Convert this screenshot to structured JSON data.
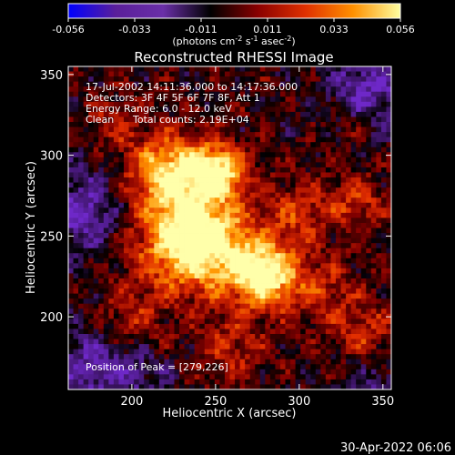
{
  "chart_data": {
    "type": "heatmap",
    "title": "Reconstructed RHESSI Image",
    "xlabel": "Heliocentric X (arcsec)",
    "ylabel": "Heliocentric Y (arcsec)",
    "xlim": [
      162,
      355
    ],
    "ylim": [
      155,
      355
    ],
    "x_ticks": [
      200,
      250,
      300,
      350
    ],
    "y_ticks": [
      200,
      250,
      300,
      350
    ],
    "colorbar": {
      "range": [
        -0.056,
        0.056
      ],
      "ticks": [
        "-0.056",
        "-0.033",
        "-0.011",
        "0.011",
        "0.033",
        "0.056"
      ],
      "unit_main": "(photons cm",
      "unit_sup1": "-2",
      "unit_mid": " s",
      "unit_sup2": "-1",
      "unit_end": " asec",
      "unit_sup3": "-2",
      "unit_close": ")",
      "colors": [
        "#0000ff",
        "#5a1f9a",
        "#6a2fa8",
        "#000000",
        "#8a0000",
        "#e03000",
        "#ff9000",
        "#ffffa0"
      ]
    },
    "annotations": [
      "17-Jul-2002 14:11:36.000 to 14:17:36.000",
      "Detectors: 3F 4F 5F 6F 7F 8F, Att 1",
      "Energy Range: 6.0 - 12.0 keV"
    ],
    "clean_label": "Clean",
    "total_counts": "Total counts: 2.19E+04",
    "peak_label": "Position of Peak = [279,226]",
    "peak": [
      279,
      226
    ],
    "sources": [
      {
        "x": 222,
        "y": 290,
        "amp": 0.045,
        "sigma": 16
      },
      {
        "x": 251,
        "y": 290,
        "amp": 0.05,
        "sigma": 12
      },
      {
        "x": 279,
        "y": 226,
        "amp": 0.056,
        "sigma": 14
      },
      {
        "x": 245,
        "y": 245,
        "amp": 0.04,
        "sigma": 20
      },
      {
        "x": 228,
        "y": 250,
        "amp": 0.032,
        "sigma": 22
      },
      {
        "x": 300,
        "y": 265,
        "amp": 0.02,
        "sigma": 14
      },
      {
        "x": 315,
        "y": 215,
        "amp": 0.018,
        "sigma": 16
      },
      {
        "x": 335,
        "y": 270,
        "amp": 0.02,
        "sigma": 12
      },
      {
        "x": 200,
        "y": 200,
        "amp": 0.016,
        "sigma": 14
      },
      {
        "x": 260,
        "y": 180,
        "amp": 0.018,
        "sigma": 14
      },
      {
        "x": 340,
        "y": 190,
        "amp": 0.018,
        "sigma": 12
      },
      {
        "x": 190,
        "y": 320,
        "amp": 0.014,
        "sigma": 12
      },
      {
        "x": 330,
        "y": 320,
        "amp": 0.01,
        "sigma": 10
      }
    ],
    "negative_regions": [
      {
        "x": 170,
        "y": 265,
        "amp": -0.028,
        "sigma": 18
      },
      {
        "x": 175,
        "y": 170,
        "amp": -0.024,
        "sigma": 16
      },
      {
        "x": 340,
        "y": 340,
        "amp": -0.026,
        "sigma": 16
      },
      {
        "x": 345,
        "y": 160,
        "amp": -0.014,
        "sigma": 12
      },
      {
        "x": 205,
        "y": 165,
        "amp": -0.014,
        "sigma": 12
      }
    ]
  },
  "footer": {
    "date": "30-Apr-2022 06:06"
  }
}
